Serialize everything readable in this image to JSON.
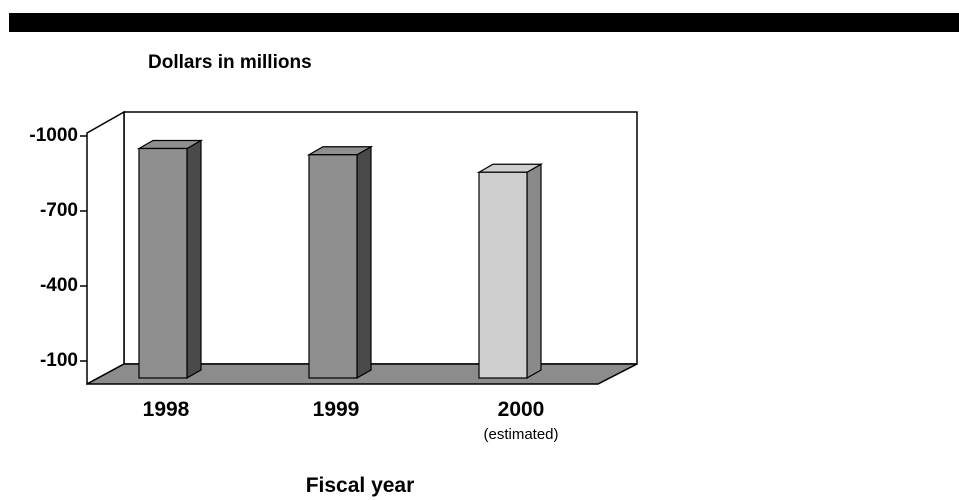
{
  "chart_data": {
    "type": "bar",
    "title": "Dollars in millions",
    "xlabel": "Fiscal year",
    "ylabel": "",
    "categories": [
      "1998",
      "1999",
      "2000"
    ],
    "category_sublabels": [
      "",
      "",
      "(estimated)"
    ],
    "values": [
      -950,
      -925,
      -855
    ],
    "ylim": [
      -100,
      -1000
    ],
    "yticks": [
      -1000,
      -700,
      -400,
      -100
    ],
    "ytick_labels": [
      "-1000",
      "-700",
      "-400",
      "-100"
    ],
    "grid": false,
    "legend": "none",
    "colors": {
      "bar_front": "#8f8f8f",
      "bar_side": "#4a4a4a",
      "bar_front_estimated": "#cfcfcf",
      "bar_side_estimated": "#8a8a8a",
      "floor": "#8c8c8c"
    }
  }
}
